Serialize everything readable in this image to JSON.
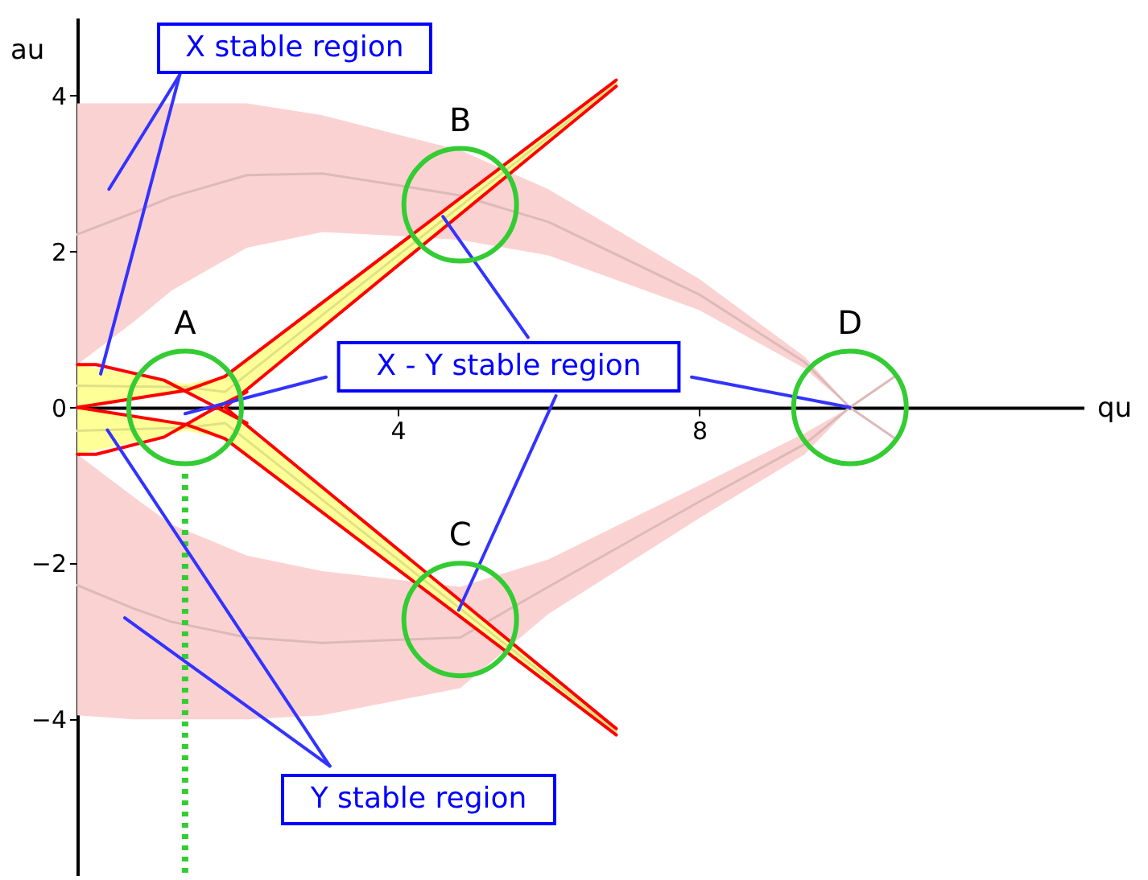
{
  "chart_data": {
    "type": "line",
    "xlabel": "qu",
    "ylabel": "au",
    "xlim": [
      -0.25,
      13.1
    ],
    "ylim": [
      -6.0,
      5.0
    ],
    "xticks": [
      4,
      8
    ],
    "yticks": [
      -4,
      -2,
      0,
      2,
      4
    ],
    "series": [
      {
        "color": "#ddb9b9",
        "x": [
          -0.25,
          0.5,
          1,
          2,
          3,
          4,
          4.83,
          6,
          8,
          9.4,
          10,
          10.6
        ],
        "values": [
          2.22,
          2.5,
          2.7,
          2.98,
          3.0,
          2.85,
          2.72,
          2.38,
          1.45,
          0.58,
          0,
          -0.4
        ],
        "upper": [
          3.9,
          3.9,
          3.9,
          3.9,
          3.75,
          3.5,
          3.3,
          2.8,
          1.65,
          0.65,
          0,
          -0.4
        ],
        "lower": [
          0.55,
          1.1,
          1.5,
          2.05,
          2.25,
          2.2,
          2.15,
          1.95,
          1.25,
          0.5,
          0,
          -0.4
        ]
      },
      {
        "color": "#ddb9b9",
        "x": [
          -0.25,
          0.5,
          1,
          2,
          3,
          4.83,
          6,
          8,
          9.4,
          10,
          10.6
        ],
        "values": [
          -2.28,
          -2.58,
          -2.75,
          -2.95,
          -3.02,
          -2.95,
          -2.3,
          -1.21,
          -0.47,
          0,
          0.4
        ],
        "upper": [
          -0.6,
          -1.15,
          -1.5,
          -1.9,
          -2.1,
          -2.3,
          -1.95,
          -1.0,
          -0.33,
          0,
          0.4
        ],
        "lower": [
          -3.95,
          -4.0,
          -4.0,
          -4.0,
          -3.95,
          -3.6,
          -2.65,
          -1.42,
          -0.6,
          0,
          0.4
        ]
      },
      {
        "color": "#e0e086",
        "x": [
          -0.25,
          1.2,
          1.71,
          6.9
        ],
        "values": [
          0.28,
          0.26,
          0.2,
          4.16
        ],
        "upper": [
          0.55,
          0.3,
          0.4,
          4.2
        ],
        "lower": [
          0,
          0.22,
          0,
          4.12
        ]
      },
      {
        "color": "#e0e086",
        "x": [
          -0.25,
          1.2,
          1.71,
          6.9
        ],
        "values": [
          -0.3,
          -0.26,
          -0.2,
          -4.16
        ],
        "upper": [
          0,
          -0.22,
          0,
          -4.12
        ],
        "lower": [
          -0.6,
          -0.3,
          -0.4,
          -4.2
        ]
      },
      {
        "color": "#ff0000",
        "x": [
          -0.25,
          1.2,
          1.71,
          6.9
        ],
        "values": [
          0,
          0.22,
          0.4,
          4.2
        ]
      },
      {
        "color": "#ff0000",
        "x": [
          1.71,
          6.9
        ],
        "values": [
          0,
          4.12
        ]
      },
      {
        "color": "#ff0000",
        "x": [
          -0.25,
          1.2,
          1.71,
          6.9
        ],
        "values": [
          0,
          -0.22,
          -0.4,
          -4.2
        ]
      },
      {
        "color": "#ff0000",
        "x": [
          1.71,
          6.9
        ],
        "values": [
          0,
          -4.12
        ]
      },
      {
        "color": "#ff0000",
        "x": [
          -0.25,
          0,
          0.9,
          1.5,
          2.0
        ],
        "values": [
          0.55,
          0.55,
          0.35,
          0.05,
          -0.2
        ]
      },
      {
        "color": "#ff0000",
        "x": [
          -0.25,
          0,
          0.9,
          1.5,
          2.0
        ],
        "values": [
          -0.6,
          -0.6,
          -0.38,
          -0.05,
          0.2
        ]
      },
      {
        "color": "#33cc33",
        "line_style": "dotted",
        "x": [
          1.18,
          1.18
        ],
        "values": [
          -0.85,
          -6.0
        ]
      },
      {
        "color": "#3333ff",
        "x": [
          1.11,
          0.17
        ],
        "values": [
          4.27,
          2.8
        ]
      },
      {
        "color": "#3333ff",
        "x": [
          1.11,
          0.06
        ],
        "values": [
          4.27,
          0.43
        ]
      },
      {
        "color": "#3333ff",
        "x": [
          3.05,
          1.18
        ],
        "values": [
          0.39,
          -0.08
        ]
      },
      {
        "color": "#3333ff",
        "x": [
          7.9,
          10.0
        ],
        "values": [
          0.39,
          0
        ]
      },
      {
        "color": "#3333ff",
        "x": [
          5.73,
          4.6
        ],
        "values": [
          0.9,
          2.45
        ]
      },
      {
        "color": "#3333ff",
        "x": [
          6.1,
          4.81
        ],
        "values": [
          0.15,
          -2.6
        ]
      },
      {
        "color": "#3333ff",
        "x": [
          3.1,
          0.15
        ],
        "values": [
          -4.6,
          -0.29
        ]
      },
      {
        "color": "#3333ff",
        "x": [
          3.1,
          0.38
        ],
        "values": [
          -4.6,
          -2.7
        ]
      },
      {
        "type": "scatter",
        "marker": "circle",
        "color": "#33cc33",
        "x": [
          1.18,
          4.83,
          4.83,
          10.0
        ],
        "values": [
          0,
          2.6,
          -2.72,
          0
        ],
        "value_labels": [
          "A",
          "B",
          "C",
          "D"
        ]
      }
    ],
    "annotations": [
      "X stable region",
      "X - Y stable region",
      "Y stable region"
    ]
  }
}
